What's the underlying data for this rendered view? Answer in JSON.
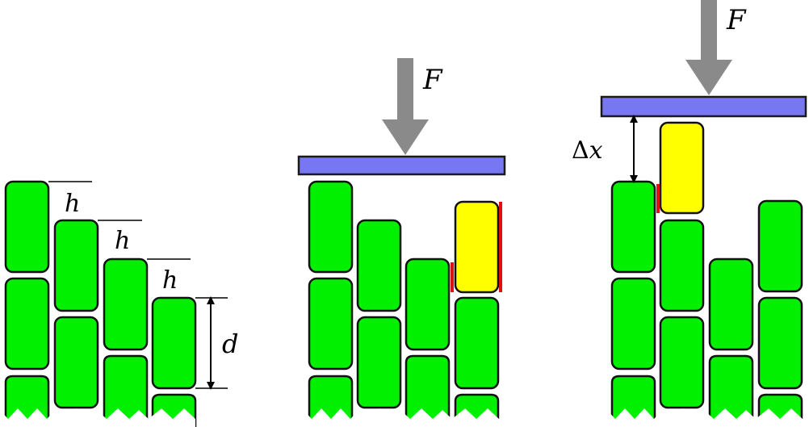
{
  "labels": {
    "step_height": "h",
    "cell_length": "d",
    "force": "F",
    "delta": "Δ",
    "x": "x"
  },
  "colors": {
    "cell_fill": "#00f000",
    "selected_cell_fill": "#ffff00",
    "cell_outline": "#111111",
    "plate_fill": "#7777f2",
    "plate_outline": "#1a1a1a",
    "force_arrow": "#8a8a8a",
    "contact_highlight": "#e01010"
  }
}
